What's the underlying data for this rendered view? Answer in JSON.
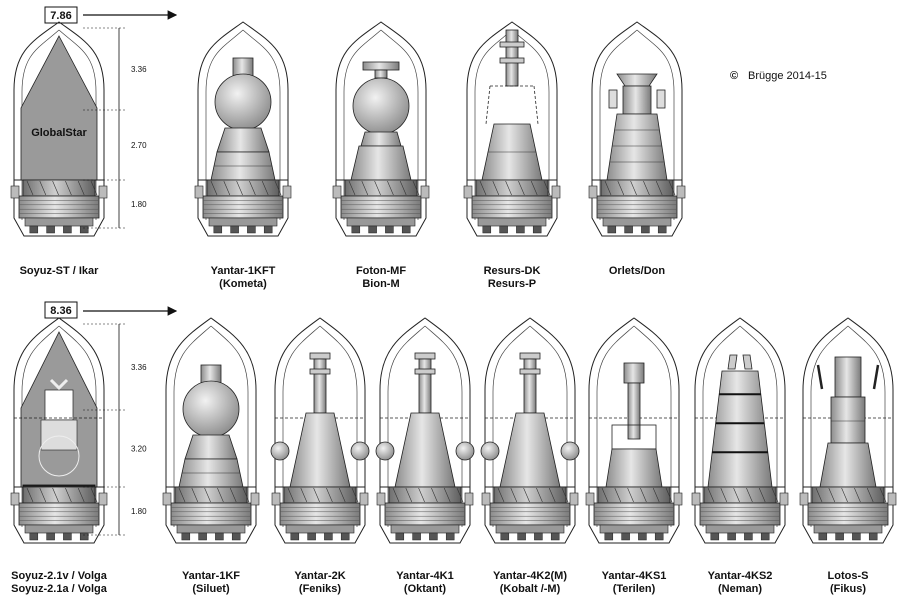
{
  "copyright": "Brügge 2014-15",
  "copyright_symbol": "©",
  "rows": [
    {
      "width_label": "7.86",
      "dims": [
        "3.36",
        "2.70",
        "1.80"
      ],
      "reference": {
        "line1": "Soyuz-ST / Ikar",
        "line2": "",
        "payload_label": "GlobalStar"
      },
      "craft": [
        {
          "id": "yantar-1kft",
          "type": "ball-cone",
          "line1": "Yantar-1KFT",
          "line2": "(Kometa)"
        },
        {
          "id": "foton-mf",
          "type": "foton",
          "line1": "Foton-MF",
          "line2": "Bion-M"
        },
        {
          "id": "resurs-dk",
          "type": "resurs",
          "line1": "Resurs-DK",
          "line2": "Resurs-P"
        },
        {
          "id": "orlets-don",
          "type": "orlets",
          "line1": "Orlets/Don",
          "line2": ""
        }
      ]
    },
    {
      "width_label": "8.36",
      "dims": [
        "3.36",
        "3.20",
        "1.80"
      ],
      "reference": {
        "line1": "Soyuz-2.1v / Volga",
        "line2": "Soyuz-2.1a / Volga",
        "payload_label": ""
      },
      "craft": [
        {
          "id": "yantar-1kf",
          "type": "ball-cone",
          "line1": "Yantar-1KF",
          "line2": "(Siluet)"
        },
        {
          "id": "yantar-2k",
          "type": "yantar2k",
          "line1": "Yantar-2K",
          "line2": "(Feniks)"
        },
        {
          "id": "yantar-4k1",
          "type": "yantar2k",
          "line1": "Yantar-4K1",
          "line2": "(Oktant)"
        },
        {
          "id": "yantar-4k2m",
          "type": "yantar2k",
          "line1": "Yantar-4K2(M)",
          "line2": "(Kobalt /-M)"
        },
        {
          "id": "yantar-4ks1",
          "type": "yantar4ks1",
          "line1": "Yantar-4KS1",
          "line2": "(Terilen)"
        },
        {
          "id": "yantar-4ks2",
          "type": "yantar4ks2",
          "line1": "Yantar-4KS2",
          "line2": "(Neman)"
        },
        {
          "id": "lotos-s",
          "type": "lotos",
          "line1": "Lotos-S",
          "line2": "(Fikus)"
        }
      ]
    }
  ]
}
